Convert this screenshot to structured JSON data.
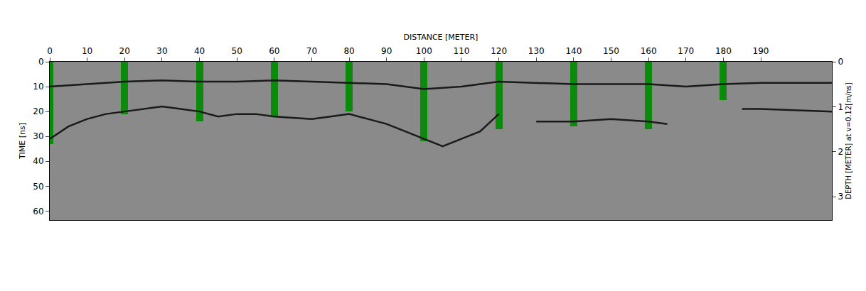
{
  "chart_data": {
    "type": "line",
    "xlabel": "DISTANCE [METER]",
    "ylabel": "TIME [ns]",
    "y2label": "DEPTH [METER] at v=0.12[m/ns]",
    "xlim": [
      0,
      209
    ],
    "xticks": [
      0,
      10,
      20,
      30,
      40,
      50,
      60,
      70,
      80,
      90,
      100,
      110,
      120,
      130,
      140,
      150,
      160,
      170,
      180,
      190
    ],
    "ylim": [
      63.6,
      0
    ],
    "yticks": [
      0,
      10,
      20,
      30,
      40,
      50,
      60
    ],
    "y2lim": [
      3.52,
      0
    ],
    "y2ticks": [
      0,
      1,
      2,
      3
    ],
    "grid": false,
    "series": [
      {
        "type": "bar",
        "color": "#0b8a0b",
        "x": [
          0,
          20,
          40,
          60,
          80,
          100,
          120,
          140,
          160,
          180
        ],
        "values": [
          33,
          21,
          24,
          22,
          20,
          32,
          27,
          26,
          27,
          15.5
        ]
      },
      {
        "type": "line",
        "color": "#1a1a1a",
        "x": [
          0,
          10,
          20,
          30,
          40,
          50,
          60,
          70,
          80,
          90,
          100,
          110,
          120,
          130,
          140,
          150,
          160,
          170,
          180,
          190,
          209
        ],
        "values": [
          10,
          9,
          8,
          7.5,
          8,
          8,
          7.5,
          8,
          8.5,
          9,
          11,
          10,
          8,
          8.5,
          9,
          9,
          9,
          10,
          9,
          8.5,
          8.5
        ]
      },
      {
        "type": "line",
        "color": "#1a1a1a",
        "x": [
          0,
          5,
          10,
          15,
          20,
          25,
          30,
          40,
          45,
          50,
          55,
          60,
          70,
          75,
          80,
          85,
          90,
          95,
          100,
          105,
          110,
          115,
          120,
          125,
          130,
          140,
          150,
          160,
          165,
          175,
          185,
          190,
          209
        ],
        "values": [
          31,
          26,
          23,
          21,
          20,
          19,
          18,
          20,
          22,
          21,
          21,
          22,
          23,
          22,
          21,
          23,
          25,
          28,
          31,
          34,
          31,
          28,
          21,
          null,
          24,
          24,
          23,
          24,
          25,
          null,
          19,
          19,
          20
        ]
      }
    ]
  }
}
